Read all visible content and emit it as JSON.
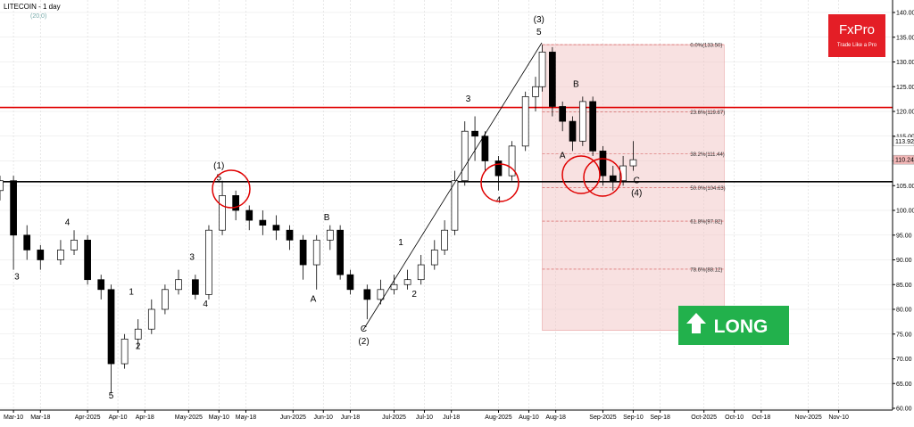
{
  "chart_data": {
    "type": "candlestick",
    "title": "LITECOIN - 1 day",
    "subtitle": "(20,0)",
    "brand": {
      "name": "FxPro",
      "tagline": "Trade Like a Pro"
    },
    "signal": "LONG",
    "xlim": [
      0,
      265
    ],
    "xticks": [
      {
        "value": 4,
        "label": "Mar-10"
      },
      {
        "value": 12,
        "label": "Mar-18"
      },
      {
        "value": 26,
        "label": "Apr-2025"
      },
      {
        "value": 35,
        "label": "Apr-10"
      },
      {
        "value": 43,
        "label": "Apr-18"
      },
      {
        "value": 56,
        "label": "May-2025"
      },
      {
        "value": 65,
        "label": "May-10"
      },
      {
        "value": 73,
        "label": "May-18"
      },
      {
        "value": 87,
        "label": "Jun-2025"
      },
      {
        "value": 96,
        "label": "Jun-10"
      },
      {
        "value": 104,
        "label": "Jun-18"
      },
      {
        "value": 117,
        "label": "Jul-2025"
      },
      {
        "value": 126,
        "label": "Jul-10"
      },
      {
        "value": 134,
        "label": "Jul-18"
      },
      {
        "value": 148,
        "label": "Aug-2025"
      },
      {
        "value": 157,
        "label": "Aug-10"
      },
      {
        "value": 165,
        "label": "Aug-18"
      },
      {
        "value": 179,
        "label": "Sep-2025"
      },
      {
        "value": 188,
        "label": "Sep-10"
      },
      {
        "value": 196,
        "label": "Sep-18"
      },
      {
        "value": 209,
        "label": "Oct-2025"
      },
      {
        "value": 218,
        "label": "Oct-10"
      },
      {
        "value": 226,
        "label": "Oct-18"
      },
      {
        "value": 240,
        "label": "Nov-2025"
      },
      {
        "value": 249,
        "label": "Nov-10"
      }
    ],
    "ylim": [
      60,
      140
    ],
    "yticks": [
      {
        "value": 60,
        "label": "60.00"
      },
      {
        "value": 65,
        "label": "65.00"
      },
      {
        "value": 70,
        "label": "70.00"
      },
      {
        "value": 75,
        "label": "75.00"
      },
      {
        "value": 80,
        "label": "80.00"
      },
      {
        "value": 85,
        "label": "85.00"
      },
      {
        "value": 90,
        "label": "90.00"
      },
      {
        "value": 95,
        "label": "95.00"
      },
      {
        "value": 100,
        "label": "100.00"
      },
      {
        "value": 105,
        "label": "105.00"
      },
      {
        "value": 110,
        "label": "110.00"
      },
      {
        "value": 115,
        "label": "115.00"
      },
      {
        "value": 120,
        "label": "120.00"
      },
      {
        "value": 125,
        "label": "125.00"
      },
      {
        "value": 130,
        "label": "130.00"
      },
      {
        "value": 135,
        "label": "135.00"
      },
      {
        "value": 140,
        "label": "140.00"
      }
    ],
    "grid": true,
    "candles": [
      {
        "x": 0,
        "o": 104,
        "h": 107,
        "l": 102,
        "c": 106
      },
      {
        "x": 4,
        "o": 106,
        "h": 107,
        "l": 88,
        "c": 95
      },
      {
        "x": 8,
        "o": 95,
        "h": 97,
        "l": 90,
        "c": 92
      },
      {
        "x": 12,
        "o": 92,
        "h": 93,
        "l": 88,
        "c": 90
      },
      {
        "x": 18,
        "o": 90,
        "h": 94,
        "l": 89,
        "c": 92
      },
      {
        "x": 22,
        "o": 92,
        "h": 96,
        "l": 91,
        "c": 94
      },
      {
        "x": 26,
        "o": 94,
        "h": 95,
        "l": 85,
        "c": 86
      },
      {
        "x": 30,
        "o": 86,
        "h": 87,
        "l": 82,
        "c": 84
      },
      {
        "x": 33,
        "o": 84,
        "h": 85,
        "l": 63,
        "c": 69
      },
      {
        "x": 37,
        "o": 69,
        "h": 75,
        "l": 68,
        "c": 74
      },
      {
        "x": 41,
        "o": 74,
        "h": 78,
        "l": 72,
        "c": 76
      },
      {
        "x": 45,
        "o": 76,
        "h": 82,
        "l": 75,
        "c": 80
      },
      {
        "x": 49,
        "o": 80,
        "h": 85,
        "l": 79,
        "c": 84
      },
      {
        "x": 53,
        "o": 84,
        "h": 88,
        "l": 83,
        "c": 86
      },
      {
        "x": 58,
        "o": 86,
        "h": 87,
        "l": 82,
        "c": 83
      },
      {
        "x": 62,
        "o": 83,
        "h": 97,
        "l": 82,
        "c": 96
      },
      {
        "x": 66,
        "o": 96,
        "h": 106,
        "l": 95,
        "c": 103
      },
      {
        "x": 70,
        "o": 103,
        "h": 104,
        "l": 98,
        "c": 100
      },
      {
        "x": 74,
        "o": 100,
        "h": 101,
        "l": 96,
        "c": 98
      },
      {
        "x": 78,
        "o": 98,
        "h": 100,
        "l": 95,
        "c": 97
      },
      {
        "x": 82,
        "o": 97,
        "h": 99,
        "l": 94,
        "c": 96
      },
      {
        "x": 86,
        "o": 96,
        "h": 97,
        "l": 92,
        "c": 94
      },
      {
        "x": 90,
        "o": 94,
        "h": 95,
        "l": 86,
        "c": 89
      },
      {
        "x": 94,
        "o": 89,
        "h": 95,
        "l": 84,
        "c": 94
      },
      {
        "x": 98,
        "o": 94,
        "h": 97,
        "l": 92,
        "c": 96
      },
      {
        "x": 101,
        "o": 96,
        "h": 97,
        "l": 86,
        "c": 87
      },
      {
        "x": 104,
        "o": 87,
        "h": 88,
        "l": 83,
        "c": 84
      },
      {
        "x": 109,
        "o": 84,
        "h": 85,
        "l": 78,
        "c": 82
      },
      {
        "x": 113,
        "o": 82,
        "h": 86,
        "l": 81,
        "c": 84
      },
      {
        "x": 117,
        "o": 84,
        "h": 87,
        "l": 83,
        "c": 85
      },
      {
        "x": 121,
        "o": 85,
        "h": 88,
        "l": 84,
        "c": 86
      },
      {
        "x": 125,
        "o": 86,
        "h": 91,
        "l": 85,
        "c": 89
      },
      {
        "x": 129,
        "o": 89,
        "h": 94,
        "l": 88,
        "c": 92
      },
      {
        "x": 132,
        "o": 92,
        "h": 98,
        "l": 91,
        "c": 96
      },
      {
        "x": 135,
        "o": 96,
        "h": 108,
        "l": 95,
        "c": 106
      },
      {
        "x": 138,
        "o": 106,
        "h": 118,
        "l": 105,
        "c": 116
      },
      {
        "x": 141,
        "o": 116,
        "h": 119,
        "l": 110,
        "c": 115
      },
      {
        "x": 144,
        "o": 115,
        "h": 116,
        "l": 108,
        "c": 110
      },
      {
        "x": 148,
        "o": 110,
        "h": 111,
        "l": 104,
        "c": 107
      },
      {
        "x": 152,
        "o": 107,
        "h": 114,
        "l": 106,
        "c": 113
      },
      {
        "x": 156,
        "o": 113,
        "h": 124,
        "l": 112,
        "c": 123
      },
      {
        "x": 159,
        "o": 123,
        "h": 127,
        "l": 120,
        "c": 125
      },
      {
        "x": 161,
        "o": 125,
        "h": 133.5,
        "l": 124,
        "c": 132
      },
      {
        "x": 164,
        "o": 132,
        "h": 133,
        "l": 119,
        "c": 121
      },
      {
        "x": 167,
        "o": 121,
        "h": 122,
        "l": 116,
        "c": 118
      },
      {
        "x": 170,
        "o": 118,
        "h": 119,
        "l": 112,
        "c": 114
      },
      {
        "x": 173,
        "o": 114,
        "h": 123,
        "l": 113,
        "c": 122
      },
      {
        "x": 176,
        "o": 122,
        "h": 123,
        "l": 111,
        "c": 112
      },
      {
        "x": 179,
        "o": 112,
        "h": 113,
        "l": 105,
        "c": 107
      },
      {
        "x": 182,
        "o": 107,
        "h": 109,
        "l": 104,
        "c": 106
      },
      {
        "x": 185,
        "o": 106,
        "h": 111,
        "l": 105,
        "c": 109
      },
      {
        "x": 188,
        "o": 109,
        "h": 114,
        "l": 108,
        "c": 110.24
      }
    ],
    "levels": [
      {
        "value": 120.8,
        "color": "#e00000"
      },
      {
        "value": 105.8,
        "color": "#000000"
      }
    ],
    "price_tags": [
      {
        "value": 113.92,
        "label": "113.92",
        "color": "#ffffff"
      },
      {
        "value": 110.24,
        "label": "110.24",
        "color": "#f4b8b8"
      }
    ],
    "fib_box": {
      "x": [
        161,
        215
      ],
      "y": [
        75.75,
        133.5
      ]
    },
    "fib_levels": [
      {
        "value": 133.5,
        "label": "0.0%(133.50)"
      },
      {
        "value": 119.87,
        "label": "23.6%(119.87)"
      },
      {
        "value": 111.44,
        "label": "38.2%(111.44)"
      },
      {
        "value": 104.63,
        "label": "50.0%(104.63)"
      },
      {
        "value": 97.82,
        "label": "61.8%(97.82)"
      },
      {
        "value": 88.12,
        "label": "78.6%(88.12)"
      }
    ],
    "annotations": [
      {
        "text": "3",
        "x": 5,
        "y": 86
      },
      {
        "text": "4",
        "x": 20,
        "y": 97
      },
      {
        "text": "1",
        "x": 39,
        "y": 83
      },
      {
        "text": "2",
        "x": 41,
        "y": 72
      },
      {
        "text": "5",
        "x": 33,
        "y": 62
      },
      {
        "text": "3",
        "x": 57,
        "y": 90
      },
      {
        "text": "4",
        "x": 61,
        "y": 80.5
      },
      {
        "text": "(1)",
        "x": 65,
        "y": 108.5
      },
      {
        "text": "5",
        "x": 65,
        "y": 106
      },
      {
        "text": "B",
        "x": 97,
        "y": 98
      },
      {
        "text": "A",
        "x": 93,
        "y": 81.5
      },
      {
        "text": "C",
        "x": 108,
        "y": 75.5
      },
      {
        "text": "(2)",
        "x": 108,
        "y": 73
      },
      {
        "text": "1",
        "x": 119,
        "y": 93
      },
      {
        "text": "2",
        "x": 123,
        "y": 82.5
      },
      {
        "text": "3",
        "x": 139,
        "y": 122
      },
      {
        "text": "4",
        "x": 148,
        "y": 101.5
      },
      {
        "text": "(3)",
        "x": 160,
        "y": 138
      },
      {
        "text": "5",
        "x": 160,
        "y": 135.5
      },
      {
        "text": "B",
        "x": 171,
        "y": 125
      },
      {
        "text": "A",
        "x": 167,
        "y": 110.5
      },
      {
        "text": "C",
        "x": 189,
        "y": 105.5
      },
      {
        "text": "(4)",
        "x": 189,
        "y": 103
      }
    ]
  }
}
